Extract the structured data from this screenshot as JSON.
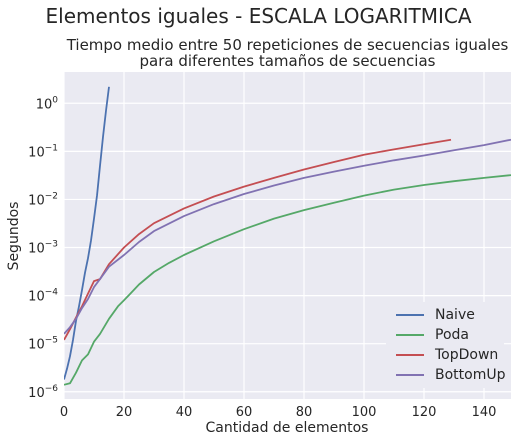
{
  "figure": {
    "suptitle": "Elementos iguales - ESCALA LOGARITMICA"
  },
  "chart_data": {
    "type": "line",
    "title_line1": "Tiempo medio entre 50 repeticiones de secuencias iguales",
    "title_line2": "para diferentes tamaños de secuencias",
    "xlabel": "Cantidad de elementos",
    "ylabel": "Segundos",
    "xlim": [
      0,
      149
    ],
    "ylim_log10": [
      -6.15,
      0.65
    ],
    "yscale": "log",
    "grid": true,
    "legend_position": "lower-right",
    "x_ticks": [
      0,
      20,
      40,
      60,
      80,
      100,
      120,
      140
    ],
    "y_ticks": [
      {
        "exp": -6,
        "base": "10",
        "sup": "−6"
      },
      {
        "exp": -5,
        "base": "10",
        "sup": "−5"
      },
      {
        "exp": -4,
        "base": "10",
        "sup": "−4"
      },
      {
        "exp": -3,
        "base": "10",
        "sup": "−3"
      },
      {
        "exp": -2,
        "base": "10",
        "sup": "−2"
      },
      {
        "exp": -1,
        "base": "10",
        "sup": "−1"
      },
      {
        "exp": 0,
        "base": "10",
        "sup": "0"
      }
    ],
    "series": [
      {
        "name": "Naive",
        "color": "#4c72b0",
        "x": [
          0,
          1,
          2,
          3,
          4,
          5,
          6,
          7,
          8,
          9,
          10,
          11,
          12,
          13,
          14,
          15
        ],
        "y": [
          1.8e-06,
          3e-06,
          5.5e-06,
          1.2e-05,
          3e-05,
          6e-05,
          0.00013,
          0.0003,
          0.0006,
          0.0014,
          0.004,
          0.012,
          0.05,
          0.2,
          0.7,
          2.2
        ]
      },
      {
        "name": "Poda",
        "color": "#55a868",
        "x": [
          0,
          2,
          4,
          6,
          8,
          10,
          12,
          15,
          18,
          20,
          25,
          30,
          35,
          40,
          50,
          60,
          70,
          80,
          90,
          100,
          110,
          120,
          130,
          140,
          149
        ],
        "y": [
          1.4e-06,
          1.5e-06,
          2.5e-06,
          4.5e-06,
          6e-06,
          1.1e-05,
          1.6e-05,
          3.3e-05,
          6e-05,
          8e-05,
          0.00017,
          0.00031,
          0.00048,
          0.0007,
          0.00135,
          0.0024,
          0.004,
          0.006,
          0.0085,
          0.012,
          0.016,
          0.02,
          0.024,
          0.028,
          0.032
        ]
      },
      {
        "name": "TopDown",
        "color": "#c44e52",
        "x": [
          0,
          2,
          4,
          6,
          8,
          10,
          12,
          15,
          20,
          25,
          30,
          40,
          50,
          60,
          70,
          80,
          90,
          100,
          110,
          120,
          129
        ],
        "y": [
          1.2e-05,
          2e-05,
          3.5e-05,
          6e-05,
          0.00011,
          0.0002,
          0.00022,
          0.00045,
          0.001,
          0.0019,
          0.0032,
          0.0065,
          0.0115,
          0.0185,
          0.028,
          0.042,
          0.06,
          0.085,
          0.11,
          0.14,
          0.175
        ]
      },
      {
        "name": "BottomUp",
        "color": "#8172b2",
        "x": [
          0,
          2,
          4,
          6,
          8,
          10,
          12,
          15,
          20,
          25,
          30,
          40,
          50,
          60,
          70,
          80,
          90,
          100,
          110,
          120,
          130,
          140,
          149
        ],
        "y": [
          1.6e-05,
          2.2e-05,
          3.3e-05,
          5.5e-05,
          8.5e-05,
          0.00015,
          0.00022,
          0.0004,
          0.0007,
          0.0013,
          0.0022,
          0.0045,
          0.008,
          0.013,
          0.0195,
          0.028,
          0.038,
          0.05,
          0.065,
          0.082,
          0.105,
          0.135,
          0.175
        ]
      }
    ]
  }
}
